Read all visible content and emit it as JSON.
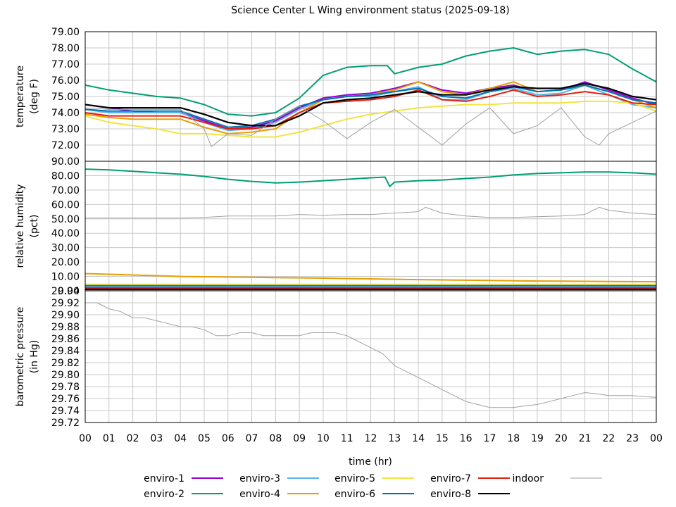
{
  "chart_data": {
    "type": "line",
    "title": "Science Center L Wing environment status (2025-09-18)",
    "xlabel": "time (hr)",
    "xlim": [
      0,
      24
    ],
    "x_ticks": [
      "00",
      "01",
      "02",
      "03",
      "04",
      "05",
      "06",
      "07",
      "08",
      "09",
      "10",
      "11",
      "12",
      "13",
      "14",
      "15",
      "16",
      "17",
      "18",
      "19",
      "20",
      "21",
      "22",
      "23",
      "00"
    ],
    "colors": {
      "enviro-1": "#9400d3",
      "enviro-2": "#009e73",
      "enviro-3": "#56b4e9",
      "enviro-4": "#e69f00",
      "enviro-5": "#f0e442",
      "enviro-6": "#0072b2",
      "enviro-7": "#e51e10",
      "enviro-8": "#000000",
      "indoor": "#a0a0a0"
    },
    "legend": [
      {
        "name": "enviro-1"
      },
      {
        "name": "enviro-2"
      },
      {
        "name": "enviro-3"
      },
      {
        "name": "enviro-4"
      },
      {
        "name": "enviro-5"
      },
      {
        "name": "enviro-6"
      },
      {
        "name": "enviro-7"
      },
      {
        "name": "enviro-8"
      },
      {
        "name": "indoor"
      }
    ],
    "panels": [
      {
        "key": "temperature",
        "ylabel_lines": [
          "temperature",
          "(deg F)"
        ],
        "ylim": [
          71.0,
          79.0
        ],
        "y_ticks": [
          "72.00",
          "73.00",
          "74.00",
          "75.00",
          "76.00",
          "77.00",
          "78.00",
          "79.00"
        ],
        "y_tick_values": [
          72,
          73,
          74,
          75,
          76,
          77,
          78,
          79
        ],
        "series": [
          {
            "name": "enviro-1",
            "x": [
              0,
              1,
              2,
              3,
              4,
              5,
              6,
              7,
              8,
              9,
              10,
              11,
              12,
              13,
              14,
              15,
              16,
              17,
              18,
              19,
              20,
              21,
              22,
              23,
              24
            ],
            "y": [
              74.5,
              74.3,
              74.1,
              74.0,
              74.0,
              73.5,
              73.0,
              73.1,
              73.5,
              74.3,
              74.9,
              75.1,
              75.2,
              75.5,
              75.9,
              75.4,
              75.2,
              75.5,
              75.7,
              75.3,
              75.4,
              75.9,
              75.4,
              74.9,
              74.5
            ]
          },
          {
            "name": "enviro-2",
            "x": [
              0,
              1,
              2,
              3,
              4,
              5,
              6,
              7,
              8,
              9,
              10,
              11,
              12,
              12.7,
              13,
              14,
              15,
              16,
              17,
              18,
              19,
              20,
              21,
              22,
              23,
              24
            ],
            "y": [
              75.7,
              75.4,
              75.2,
              75.0,
              74.9,
              74.5,
              73.9,
              73.8,
              74.0,
              74.9,
              76.3,
              76.8,
              76.9,
              76.9,
              76.4,
              76.8,
              77.0,
              77.5,
              77.8,
              78.0,
              77.6,
              77.8,
              77.9,
              77.6,
              76.7,
              75.9
            ]
          },
          {
            "name": "enviro-3",
            "x": [
              0,
              1,
              2,
              3,
              4,
              5,
              6,
              7,
              8,
              9,
              10,
              11,
              12,
              13,
              14,
              15,
              16,
              17,
              18,
              19,
              20,
              21,
              22,
              23,
              24
            ],
            "y": [
              74.2,
              74.0,
              74.0,
              74.0,
              74.0,
              73.4,
              72.9,
              73.0,
              73.4,
              74.2,
              74.8,
              75.0,
              75.0,
              75.3,
              75.6,
              74.8,
              74.8,
              75.3,
              75.5,
              75.1,
              75.2,
              75.7,
              75.1,
              74.5,
              74.3
            ]
          },
          {
            "name": "enviro-4",
            "x": [
              0,
              1,
              2,
              3,
              4,
              5,
              6,
              7,
              8,
              9,
              10,
              11,
              12,
              13,
              14,
              15,
              16,
              17,
              18,
              19,
              20,
              21,
              22,
              23,
              24
            ],
            "y": [
              73.9,
              73.7,
              73.6,
              73.6,
              73.6,
              73.1,
              72.7,
              72.8,
              73.0,
              74.0,
              74.8,
              75.0,
              75.1,
              75.4,
              75.9,
              75.3,
              75.1,
              75.5,
              75.9,
              75.3,
              75.4,
              75.7,
              75.3,
              74.8,
              74.3
            ]
          },
          {
            "name": "enviro-5",
            "x": [
              0,
              1,
              2,
              3,
              4,
              5,
              6,
              7,
              8,
              9,
              10,
              11,
              12,
              13,
              14,
              15,
              16,
              17,
              18,
              19,
              20,
              21,
              22,
              23,
              24
            ],
            "y": [
              73.8,
              73.4,
              73.2,
              73.0,
              72.7,
              72.7,
              72.6,
              72.5,
              72.5,
              72.8,
              73.2,
              73.6,
              73.9,
              74.1,
              74.3,
              74.4,
              74.5,
              74.5,
              74.6,
              74.6,
              74.6,
              74.7,
              74.7,
              74.6,
              74.1
            ]
          },
          {
            "name": "enviro-6",
            "x": [
              0,
              1,
              2,
              3,
              4,
              5,
              6,
              7,
              8,
              9,
              10,
              11,
              12,
              13,
              14,
              15,
              16,
              17,
              18,
              19,
              20,
              21,
              22,
              23,
              24
            ],
            "y": [
              74.2,
              74.1,
              74.1,
              74.1,
              74.1,
              73.6,
              73.1,
              73.2,
              73.6,
              74.4,
              74.8,
              75.0,
              75.1,
              75.3,
              75.5,
              75.0,
              74.9,
              75.3,
              75.6,
              75.3,
              75.4,
              75.7,
              75.3,
              74.8,
              74.6
            ]
          },
          {
            "name": "enviro-7",
            "x": [
              0,
              1,
              2,
              3,
              4,
              5,
              6,
              7,
              8,
              9,
              10,
              11,
              12,
              13,
              14,
              15,
              16,
              17,
              18,
              19,
              20,
              21,
              22,
              23,
              24
            ],
            "y": [
              74.0,
              73.8,
              73.8,
              73.8,
              73.8,
              73.4,
              73.0,
              73.0,
              73.2,
              74.0,
              74.6,
              74.7,
              74.8,
              75.0,
              75.4,
              74.8,
              74.7,
              75.0,
              75.4,
              75.0,
              75.1,
              75.3,
              75.1,
              74.6,
              74.5
            ]
          },
          {
            "name": "enviro-8",
            "x": [
              0,
              1,
              2,
              3,
              4,
              5,
              6,
              7,
              8,
              9,
              10,
              11,
              12,
              13,
              14,
              15,
              16,
              17,
              18,
              19,
              20,
              21,
              22,
              23,
              24
            ],
            "y": [
              74.5,
              74.3,
              74.3,
              74.3,
              74.3,
              73.9,
              73.4,
              73.2,
              73.2,
              73.8,
              74.6,
              74.8,
              74.9,
              75.1,
              75.3,
              75.1,
              75.1,
              75.4,
              75.6,
              75.5,
              75.5,
              75.8,
              75.5,
              75.0,
              74.8
            ]
          },
          {
            "name": "indoor",
            "x": [
              0,
              1,
              2,
              3,
              4,
              5,
              5.3,
              6,
              7,
              8,
              9,
              10,
              11,
              12,
              13,
              14,
              15,
              16,
              17,
              18,
              19,
              20,
              21,
              21.6,
              22,
              23,
              24
            ],
            "y": [
              74.3,
              74.2,
              74.2,
              74.2,
              74.2,
              73.0,
              71.9,
              72.7,
              72.6,
              73.6,
              74.4,
              73.5,
              72.4,
              73.4,
              74.2,
              73.1,
              72.0,
              73.3,
              74.3,
              72.7,
              73.2,
              74.3,
              72.5,
              72.0,
              72.7,
              73.4,
              74.1
            ]
          }
        ]
      },
      {
        "key": "humidity",
        "ylabel_lines": [
          "relative humidity",
          "(pct)"
        ],
        "ylim": [
          0.0,
          90.0
        ],
        "y_ticks": [
          "0.00",
          "10.00",
          "20.00",
          "30.00",
          "40.00",
          "50.00",
          "60.00",
          "70.00",
          "80.00",
          "90.00"
        ],
        "y_tick_values": [
          0,
          10,
          20,
          30,
          40,
          50,
          60,
          70,
          80,
          90
        ],
        "series": [
          {
            "name": "enviro-1",
            "x": [
              0,
              24
            ],
            "y": [
              1.5,
              1.5
            ]
          },
          {
            "name": "enviro-2",
            "x": [
              0,
              1,
              2,
              3,
              4,
              5,
              6,
              7,
              8,
              9,
              10,
              11,
              12,
              12.6,
              12.8,
              13,
              14,
              15,
              16,
              17,
              18,
              19,
              20,
              21,
              22,
              23,
              24
            ],
            "y": [
              84.5,
              84.0,
              83.0,
              82.0,
              81.0,
              79.5,
              77.5,
              76.0,
              75.0,
              75.5,
              76.5,
              77.5,
              78.5,
              79.0,
              72.5,
              75.5,
              76.5,
              77.0,
              78.0,
              79.0,
              80.5,
              81.5,
              82.0,
              82.5,
              82.5,
              82.0,
              81.0
            ]
          },
          {
            "name": "enviro-3",
            "x": [
              0,
              24
            ],
            "y": [
              2.5,
              2.5
            ]
          },
          {
            "name": "enviro-4",
            "x": [
              0,
              1,
              2,
              3,
              4,
              5,
              6,
              7,
              8,
              9,
              10,
              11,
              12,
              13,
              14,
              15,
              16,
              17,
              18,
              19,
              20,
              21,
              22,
              23,
              24
            ],
            "y": [
              12.0,
              11.5,
              11.0,
              10.5,
              10.0,
              9.8,
              9.6,
              9.4,
              9.2,
              9.0,
              8.8,
              8.5,
              8.3,
              8.0,
              7.8,
              7.6,
              7.4,
              7.2,
              7.0,
              6.8,
              6.7,
              6.6,
              6.5,
              6.4,
              6.3
            ]
          },
          {
            "name": "enviro-5",
            "x": [
              0,
              24
            ],
            "y": [
              4.5,
              4.5
            ]
          },
          {
            "name": "enviro-6",
            "x": [
              0,
              24
            ],
            "y": [
              3.5,
              3.5
            ]
          },
          {
            "name": "enviro-7",
            "x": [
              0,
              24
            ],
            "y": [
              2.0,
              2.0
            ]
          },
          {
            "name": "enviro-8",
            "x": [
              0,
              24
            ],
            "y": [
              1.0,
              1.0
            ]
          },
          {
            "name": "indoor",
            "x": [
              0,
              1,
              2,
              3,
              4,
              5,
              6,
              7,
              8,
              9,
              10,
              11,
              12,
              13,
              14,
              14.3,
              15,
              16,
              17,
              18,
              19,
              20,
              21,
              21.6,
              22,
              23,
              24
            ],
            "y": [
              50.5,
              50.5,
              50.5,
              50.5,
              50.5,
              51.0,
              52.0,
              52.0,
              52.0,
              53.0,
              52.5,
              53.0,
              53.0,
              54.0,
              55.0,
              58.0,
              54.0,
              52.0,
              51.0,
              51.0,
              51.5,
              52.0,
              53.0,
              58.0,
              56.0,
              54.0,
              53.0
            ]
          }
        ]
      },
      {
        "key": "pressure",
        "ylabel_lines": [
          "barometric pressure",
          "(in Hg)"
        ],
        "ylim": [
          29.72,
          29.94
        ],
        "y_ticks": [
          "29.72",
          "29.74",
          "29.76",
          "29.78",
          "29.80",
          "29.82",
          "29.84",
          "29.86",
          "29.88",
          "29.90",
          "29.92",
          "29.94"
        ],
        "y_tick_values": [
          29.72,
          29.74,
          29.76,
          29.78,
          29.8,
          29.82,
          29.84,
          29.86,
          29.88,
          29.9,
          29.92,
          29.94
        ],
        "series": [
          {
            "name": "indoor",
            "x": [
              0,
              0.5,
              1,
              1.5,
              2,
              2.5,
              3,
              3.5,
              4,
              4.5,
              5,
              5.5,
              6,
              6.5,
              7,
              7.5,
              8,
              8.5,
              9,
              9.5,
              10,
              10.5,
              11,
              11.5,
              12,
              12.5,
              13,
              13.5,
              14,
              14.5,
              15,
              15.5,
              16,
              16.5,
              17,
              17.5,
              18,
              18.5,
              19,
              19.5,
              20,
              20.5,
              21,
              21.5,
              22,
              22.5,
              23,
              23.5,
              24
            ],
            "y": [
              29.92,
              29.92,
              29.91,
              29.905,
              29.895,
              29.895,
              29.89,
              29.885,
              29.88,
              29.88,
              29.875,
              29.865,
              29.865,
              29.87,
              29.87,
              29.865,
              29.865,
              29.865,
              29.865,
              29.87,
              29.87,
              29.87,
              29.865,
              29.855,
              29.845,
              29.835,
              29.815,
              29.805,
              29.795,
              29.785,
              29.775,
              29.765,
              29.755,
              29.75,
              29.745,
              29.745,
              29.745,
              29.748,
              29.75,
              29.755,
              29.76,
              29.765,
              29.77,
              29.768,
              29.765,
              29.765,
              29.765,
              29.763,
              29.762
            ]
          }
        ]
      }
    ]
  }
}
